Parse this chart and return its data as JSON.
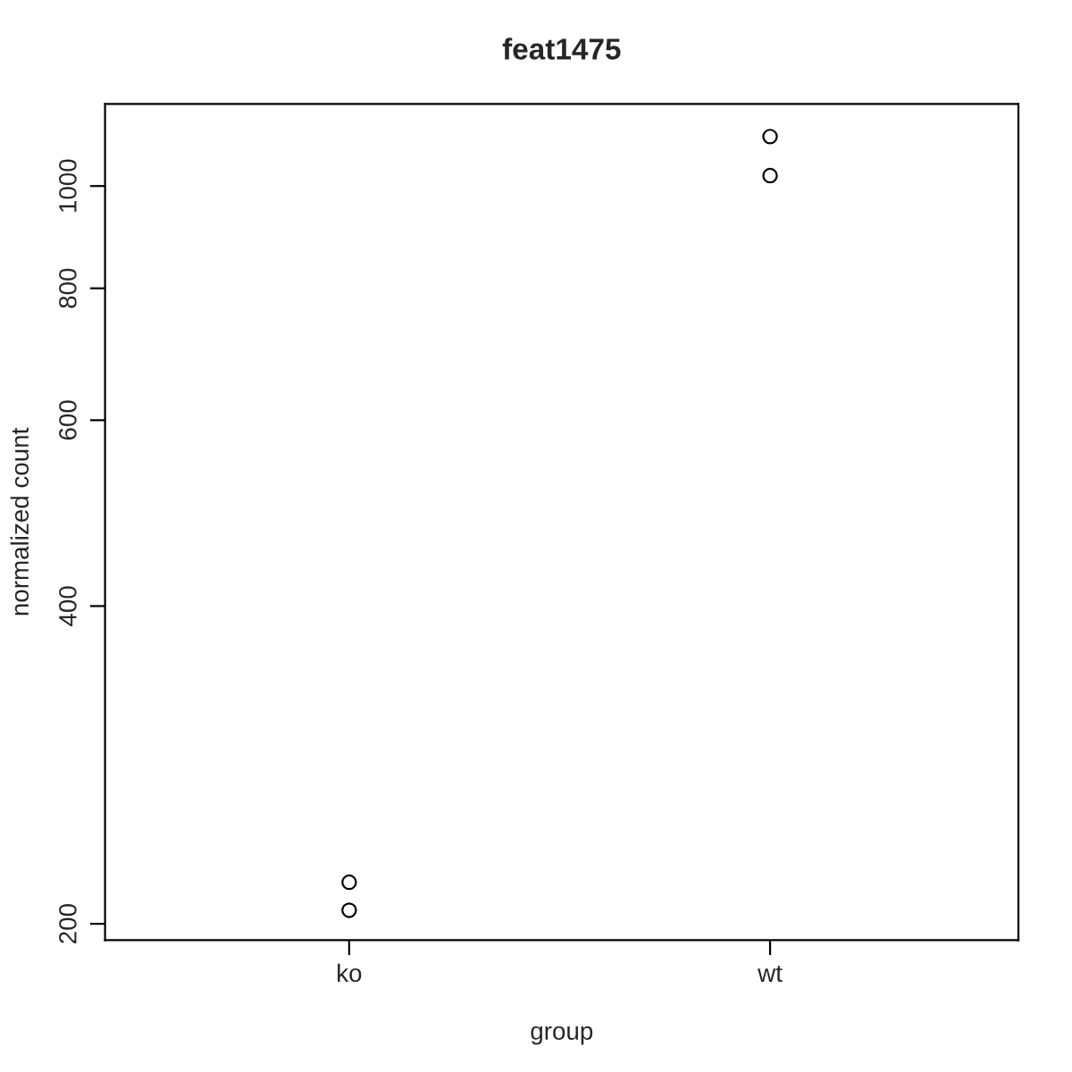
{
  "chart_data": {
    "type": "scatter",
    "title": "feat1475",
    "xlabel": "group",
    "ylabel": "normalized count",
    "categories": [
      "ko",
      "wt"
    ],
    "series": [
      {
        "color": "#000000",
        "x": [
          "ko",
          "ko",
          "wt",
          "wt"
        ],
        "values": [
          219,
          206,
          1114,
          1023
        ]
      }
    ],
    "log": "y",
    "ylim": [
      193,
      1196
    ],
    "yticks": [
      200,
      400,
      600,
      800,
      1000
    ],
    "grid": false,
    "legend": false,
    "marker": "circle"
  }
}
